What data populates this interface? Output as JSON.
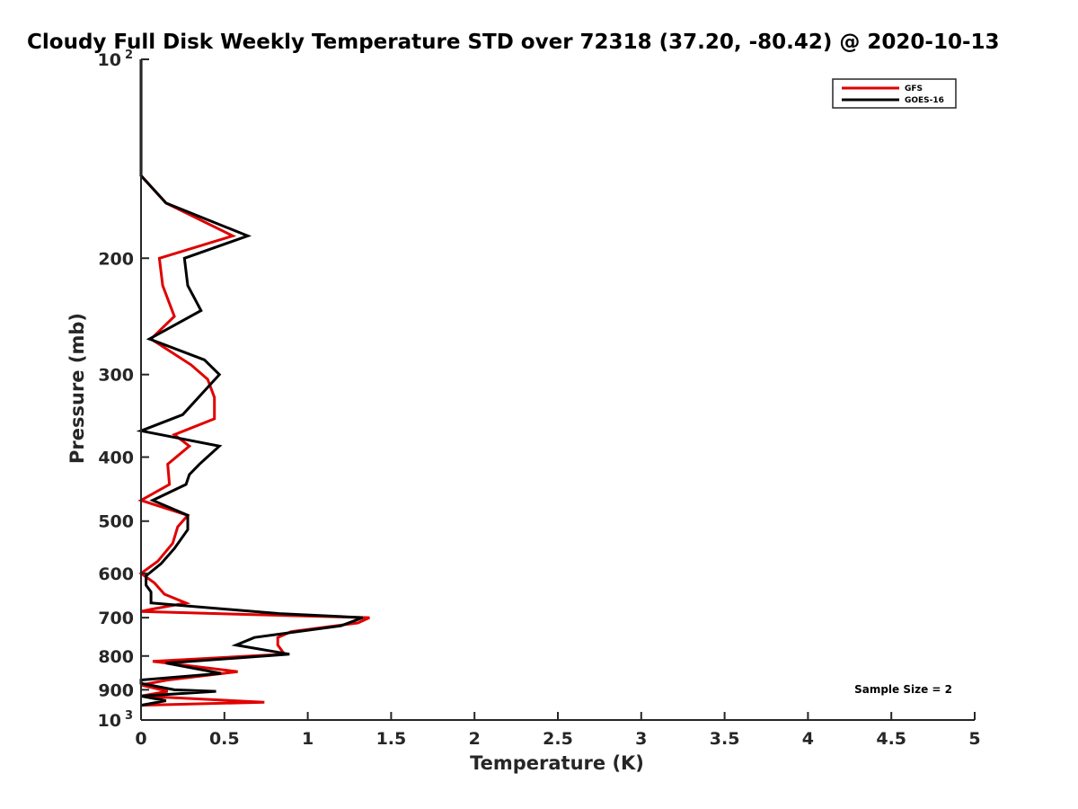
{
  "chart_data": {
    "type": "line",
    "title": "Cloudy Full Disk Weekly Temperature STD over 72318 (37.20, -80.42) @ 2020-10-13",
    "xlabel": "Temperature (K)",
    "ylabel": "Pressure (mb)",
    "xlim": [
      0,
      5
    ],
    "ylim": [
      100,
      1000
    ],
    "y_scale": "log",
    "y_reversed": true,
    "x_ticks": [
      0,
      0.5,
      1,
      1.5,
      2,
      2.5,
      3,
      3.5,
      4,
      4.5,
      5
    ],
    "x_tick_labels": [
      "0",
      "0.5",
      "1",
      "1.5",
      "2",
      "2.5",
      "3",
      "3.5",
      "4",
      "4.5",
      "5"
    ],
    "y_ticks": [
      {
        "value": 100,
        "label": "10",
        "sup": "2"
      },
      {
        "value": 200,
        "label": "200"
      },
      {
        "value": 300,
        "label": "300"
      },
      {
        "value": 400,
        "label": "400"
      },
      {
        "value": 500,
        "label": "500"
      },
      {
        "value": 600,
        "label": "600"
      },
      {
        "value": 700,
        "label": "700"
      },
      {
        "value": 800,
        "label": "800"
      },
      {
        "value": 900,
        "label": "900"
      },
      {
        "value": 1000,
        "label": "10",
        "sup": "3"
      }
    ],
    "grid": false,
    "legend_position": "top-right",
    "annotation": "Sample Size = 2",
    "series": [
      {
        "name": "GFS",
        "color": "#e00000",
        "points": [
          [
            0.0,
            100
          ],
          [
            0.0,
            150
          ],
          [
            0.15,
            165
          ],
          [
            0.55,
            185
          ],
          [
            0.11,
            200
          ],
          [
            0.13,
            220
          ],
          [
            0.2,
            245
          ],
          [
            0.06,
            265
          ],
          [
            0.3,
            290
          ],
          [
            0.4,
            305
          ],
          [
            0.44,
            325
          ],
          [
            0.44,
            350
          ],
          [
            0.2,
            370
          ],
          [
            0.29,
            385
          ],
          [
            0.16,
            410
          ],
          [
            0.17,
            440
          ],
          [
            0.0,
            465
          ],
          [
            0.28,
            490
          ],
          [
            0.22,
            510
          ],
          [
            0.19,
            540
          ],
          [
            0.1,
            575
          ],
          [
            0.0,
            600
          ],
          [
            0.08,
            620
          ],
          [
            0.14,
            645
          ],
          [
            0.27,
            665
          ],
          [
            0.06,
            680
          ],
          [
            0.0,
            685
          ],
          [
            0.7,
            693
          ],
          [
            1.37,
            700
          ],
          [
            1.3,
            713
          ],
          [
            0.9,
            735
          ],
          [
            0.82,
            750
          ],
          [
            0.82,
            770
          ],
          [
            0.86,
            795
          ],
          [
            0.07,
            815
          ],
          [
            0.58,
            845
          ],
          [
            0.16,
            870
          ],
          [
            0.0,
            885
          ],
          [
            0.16,
            905
          ],
          [
            0.0,
            920
          ],
          [
            0.74,
            940
          ],
          [
            0.0,
            950
          ]
        ]
      },
      {
        "name": "GOES-16",
        "color": "#000000",
        "points": [
          [
            0.0,
            100
          ],
          [
            0.0,
            150
          ],
          [
            0.15,
            165
          ],
          [
            0.64,
            185
          ],
          [
            0.26,
            200
          ],
          [
            0.28,
            220
          ],
          [
            0.36,
            240
          ],
          [
            0.05,
            265
          ],
          [
            0.38,
            285
          ],
          [
            0.47,
            300
          ],
          [
            0.25,
            345
          ],
          [
            0.0,
            365
          ],
          [
            0.47,
            385
          ],
          [
            0.35,
            410
          ],
          [
            0.29,
            425
          ],
          [
            0.27,
            440
          ],
          [
            0.07,
            465
          ],
          [
            0.28,
            490
          ],
          [
            0.28,
            515
          ],
          [
            0.2,
            550
          ],
          [
            0.12,
            580
          ],
          [
            0.03,
            605
          ],
          [
            0.03,
            625
          ],
          [
            0.06,
            640
          ],
          [
            0.06,
            655
          ],
          [
            0.06,
            665
          ],
          [
            0.83,
            690
          ],
          [
            1.33,
            700
          ],
          [
            1.2,
            720
          ],
          [
            0.68,
            750
          ],
          [
            0.57,
            770
          ],
          [
            0.89,
            795
          ],
          [
            0.15,
            820
          ],
          [
            0.48,
            850
          ],
          [
            0.0,
            870
          ],
          [
            0.0,
            880
          ],
          [
            0.2,
            900
          ],
          [
            0.45,
            905
          ],
          [
            0.0,
            920
          ],
          [
            0.15,
            935
          ],
          [
            0.0,
            950
          ]
        ]
      }
    ]
  }
}
